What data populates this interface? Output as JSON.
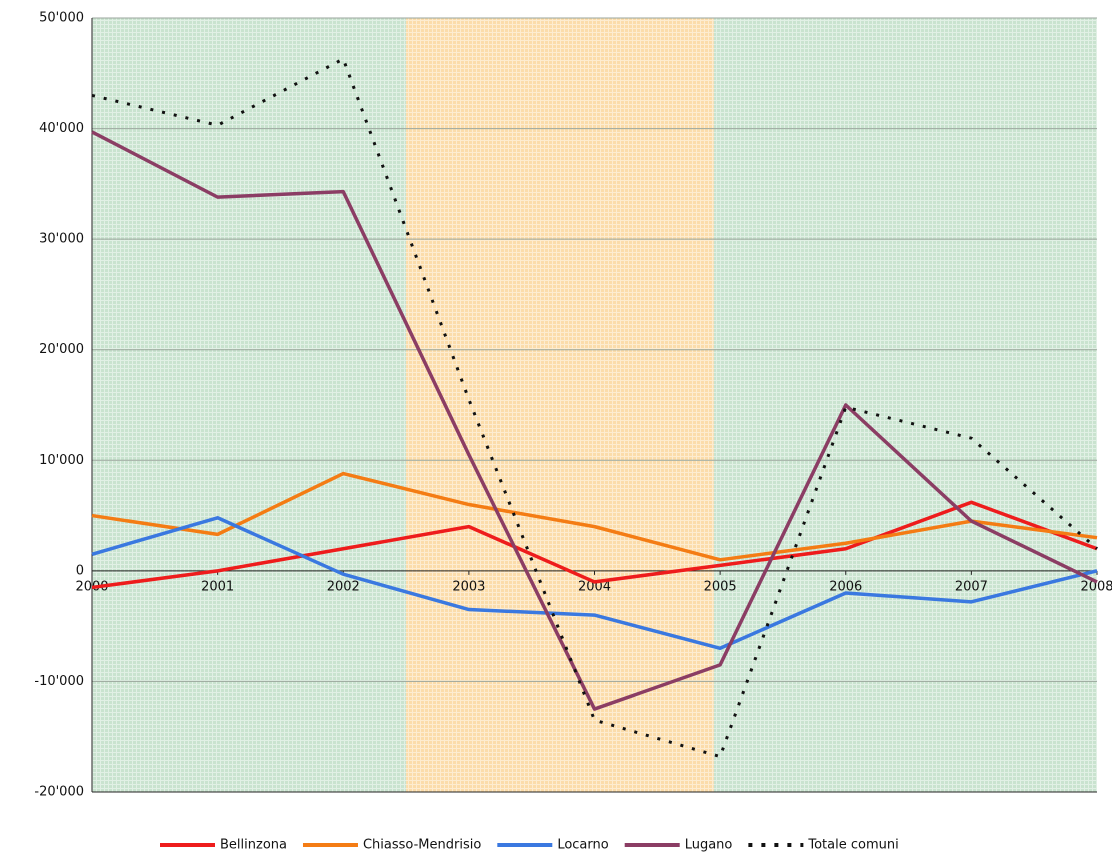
{
  "chart_data": {
    "type": "line",
    "x": [
      2000,
      2001,
      2002,
      2003,
      2004,
      2005,
      2006,
      2007,
      2008
    ],
    "xlim": [
      2000,
      2008
    ],
    "xticks": [
      2000,
      2001,
      2002,
      2003,
      2004,
      2005,
      2006,
      2007,
      2008
    ],
    "ylim": [
      -20000,
      50000
    ],
    "yticks": [
      {
        "value": -20000,
        "label": "-20'000"
      },
      {
        "value": -10000,
        "label": "-10'000"
      },
      0,
      {
        "value": 10000,
        "label": "10'000"
      },
      {
        "value": 20000,
        "label": "20'000"
      },
      {
        "value": 30000,
        "label": "30'000"
      },
      {
        "value": 40000,
        "label": "40'000"
      },
      {
        "value": 50000,
        "label": "50'000"
      }
    ],
    "grid": true,
    "legend": "bottom",
    "shaded_periods": [
      {
        "from": 2000,
        "to": 2002.5,
        "color": "#c9e3cf"
      },
      {
        "from": 2002.5,
        "to": 2004.95,
        "color": "#fbdcaa"
      },
      {
        "from": 2004.95,
        "to": 2008,
        "color": "#c9e3cf"
      }
    ],
    "series": [
      {
        "name": "Bellinzona",
        "color": "#ee1c1c",
        "style": "solid",
        "values": [
          -1500,
          0,
          2000,
          4000,
          -1000,
          500,
          2000,
          6200,
          2000
        ]
      },
      {
        "name": "Chiasso-Mendrisio",
        "color": "#f47c14",
        "style": "solid",
        "values": [
          5000,
          3300,
          8800,
          6000,
          4000,
          1000,
          2500,
          4500,
          3000
        ]
      },
      {
        "name": "Locarno",
        "color": "#3a78e0",
        "style": "solid",
        "values": [
          1500,
          4800,
          -300,
          -3500,
          -4000,
          -7000,
          -2000,
          -2800,
          0
        ]
      },
      {
        "name": "Lugano",
        "color": "#8b3d64",
        "style": "solid",
        "values": [
          39700,
          33800,
          34300,
          10500,
          -12500,
          -8500,
          15000,
          4500,
          -1000
        ]
      },
      {
        "name": "Totale comuni",
        "color": "#111111",
        "style": "dotted",
        "values": [
          43000,
          40300,
          46300,
          15500,
          -13500,
          -16800,
          14800,
          12000,
          2000
        ]
      }
    ]
  }
}
